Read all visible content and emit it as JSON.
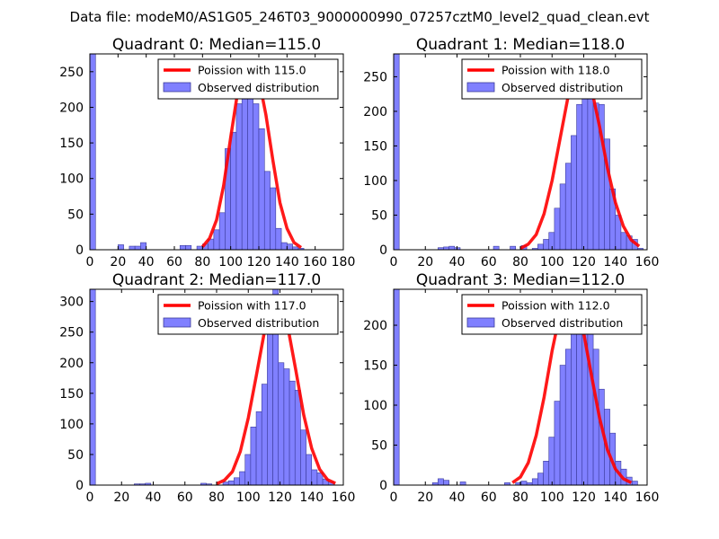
{
  "suptitle": "Data file: modeM0/AS1G05_246T03_9000000990_07257cztM0_level2_quad_clean.evt",
  "colors": {
    "bar_fill": "#8080ff",
    "bar_edge": "#3a3a9a",
    "curve": "#ff0000",
    "axis": "#000000",
    "legend_edge": "#000000"
  },
  "chart_data": [
    {
      "type": "bar",
      "title": "Quadrant 0: Median=115.0",
      "median": 115.0,
      "legend": [
        "Poission with 115.0",
        "Observed distribution"
      ],
      "legend_loc": "upper right",
      "xlim": [
        0,
        180
      ],
      "ylim": [
        0,
        275
      ],
      "xticks": [
        "0",
        "20",
        "40",
        "60",
        "80",
        "100",
        "120",
        "140",
        "160",
        "180"
      ],
      "yticks": [
        "0",
        "50",
        "100",
        "150",
        "200",
        "250"
      ],
      "bin_width": 4,
      "bins": [
        0,
        4,
        8,
        12,
        16,
        20,
        24,
        28,
        32,
        36,
        40,
        44,
        48,
        52,
        56,
        60,
        64,
        68,
        72,
        76,
        80,
        84,
        88,
        92,
        96,
        100,
        104,
        108,
        112,
        116,
        120,
        124,
        128,
        132,
        136,
        140,
        144,
        148,
        152,
        156,
        160,
        164,
        168,
        172,
        176
      ],
      "counts": [
        275,
        0,
        0,
        0,
        0,
        7,
        0,
        5,
        5,
        10,
        0,
        0,
        0,
        0,
        0,
        0,
        6,
        6,
        0,
        5,
        8,
        15,
        28,
        52,
        142,
        165,
        205,
        230,
        225,
        205,
        170,
        110,
        87,
        30,
        10,
        8,
        4,
        2,
        0,
        0,
        0,
        0,
        0,
        0,
        0
      ],
      "curve_x": [
        80,
        85,
        90,
        95,
        100,
        105,
        110,
        115,
        120,
        125,
        130,
        135,
        140,
        145,
        150
      ],
      "curve_y": [
        4,
        16,
        42,
        90,
        158,
        222,
        258,
        262,
        240,
        190,
        125,
        66,
        30,
        10,
        3
      ]
    },
    {
      "type": "bar",
      "title": "Quadrant 1: Median=118.0",
      "median": 118.0,
      "legend": [
        "Poission with 118.0",
        "Observed distribution"
      ],
      "legend_loc": "upper right",
      "xlim": [
        0,
        160
      ],
      "ylim": [
        0,
        283
      ],
      "xticks": [
        "0",
        "20",
        "40",
        "60",
        "80",
        "100",
        "120",
        "140",
        "160"
      ],
      "yticks": [
        "0",
        "50",
        "100",
        "150",
        "200",
        "250"
      ],
      "bin_width": 3.5,
      "bins": [
        0,
        3.5,
        7,
        10.5,
        14,
        17.5,
        21,
        24.5,
        28,
        31.5,
        35,
        38.5,
        42,
        45.5,
        49,
        52.5,
        56,
        59.5,
        63,
        66.5,
        70,
        73.5,
        77,
        80.5,
        84,
        87.5,
        91,
        94.5,
        98,
        101.5,
        105,
        108.5,
        112,
        115.5,
        119,
        122.5,
        126,
        129.5,
        133,
        136.5,
        140,
        143.5,
        147,
        150.5,
        154
      ],
      "counts": [
        283,
        0,
        0,
        0,
        0,
        0,
        0,
        0,
        3,
        4,
        5,
        3,
        0,
        0,
        0,
        0,
        0,
        0,
        5,
        0,
        0,
        5,
        0,
        6,
        0,
        2,
        8,
        15,
        25,
        60,
        95,
        125,
        165,
        210,
        270,
        240,
        212,
        210,
        160,
        88,
        50,
        25,
        20,
        15,
        2
      ],
      "curve_x": [
        80,
        85,
        90,
        95,
        100,
        105,
        110,
        115,
        120,
        125,
        130,
        135,
        140,
        145,
        150,
        155
      ],
      "curve_y": [
        2,
        8,
        22,
        52,
        100,
        160,
        220,
        260,
        262,
        232,
        178,
        118,
        68,
        34,
        14,
        5
      ]
    },
    {
      "type": "bar",
      "title": "Quadrant 2: Median=117.0",
      "median": 117.0,
      "legend": [
        "Poission with 117.0",
        "Observed distribution"
      ],
      "legend_loc": "upper right",
      "xlim": [
        0,
        160
      ],
      "ylim": [
        0,
        320
      ],
      "xticks": [
        "0",
        "20",
        "40",
        "60",
        "80",
        "100",
        "120",
        "140",
        "160"
      ],
      "yticks": [
        "0",
        "50",
        "100",
        "150",
        "200",
        "250",
        "300"
      ],
      "bin_width": 3.5,
      "bins": [
        0,
        3.5,
        7,
        10.5,
        14,
        17.5,
        21,
        24.5,
        28,
        31.5,
        35,
        38.5,
        42,
        45.5,
        49,
        52.5,
        56,
        59.5,
        63,
        66.5,
        70,
        73.5,
        77,
        80.5,
        84,
        87.5,
        91,
        94.5,
        98,
        101.5,
        105,
        108.5,
        112,
        115.5,
        119,
        122.5,
        126,
        129.5,
        133,
        136.5,
        140,
        143.5,
        147,
        150.5,
        154
      ],
      "counts": [
        320,
        0,
        0,
        0,
        0,
        0,
        0,
        0,
        2,
        2,
        3,
        0,
        0,
        0,
        0,
        0,
        0,
        0,
        0,
        0,
        3,
        2,
        0,
        0,
        5,
        7,
        12,
        22,
        50,
        95,
        120,
        165,
        290,
        320,
        200,
        190,
        170,
        155,
        90,
        50,
        25,
        20,
        10,
        5,
        0
      ],
      "curve_x": [
        80,
        85,
        90,
        95,
        100,
        105,
        110,
        115,
        120,
        125,
        130,
        135,
        140,
        145,
        150,
        155
      ],
      "curve_y": [
        2,
        8,
        22,
        55,
        110,
        178,
        248,
        298,
        300,
        258,
        188,
        115,
        60,
        26,
        9,
        3
      ]
    },
    {
      "type": "bar",
      "title": "Quadrant 3: Median=112.0",
      "median": 112.0,
      "legend": [
        "Poission with 112.0",
        "Observed distribution"
      ],
      "legend_loc": "upper right",
      "xlim": [
        0,
        160
      ],
      "ylim": [
        0,
        245
      ],
      "xticks": [
        "0",
        "20",
        "40",
        "60",
        "80",
        "100",
        "120",
        "140",
        "160"
      ],
      "yticks": [
        "0",
        "50",
        "100",
        "150",
        "200"
      ],
      "bin_width": 3.5,
      "bins": [
        0,
        3.5,
        7,
        10.5,
        14,
        17.5,
        21,
        24.5,
        28,
        31.5,
        35,
        38.5,
        42,
        45.5,
        49,
        52.5,
        56,
        59.5,
        63,
        66.5,
        70,
        73.5,
        77,
        80.5,
        84,
        87.5,
        91,
        94.5,
        98,
        101.5,
        105,
        108.5,
        112,
        115.5,
        119,
        122.5,
        126,
        129.5,
        133,
        136.5,
        140,
        143.5,
        147,
        150.5,
        154
      ],
      "counts": [
        245,
        0,
        0,
        0,
        0,
        0,
        0,
        3,
        8,
        6,
        0,
        0,
        4,
        0,
        0,
        0,
        0,
        0,
        0,
        0,
        3,
        0,
        3,
        5,
        3,
        8,
        15,
        30,
        60,
        105,
        150,
        170,
        190,
        215,
        230,
        215,
        170,
        120,
        95,
        65,
        30,
        20,
        10,
        5,
        0
      ],
      "curve_x": [
        75,
        80,
        85,
        90,
        95,
        100,
        105,
        110,
        115,
        120,
        125,
        130,
        135,
        140,
        145,
        150
      ],
      "curve_y": [
        3,
        10,
        28,
        62,
        110,
        168,
        215,
        236,
        228,
        190,
        136,
        84,
        44,
        20,
        8,
        3
      ]
    }
  ]
}
